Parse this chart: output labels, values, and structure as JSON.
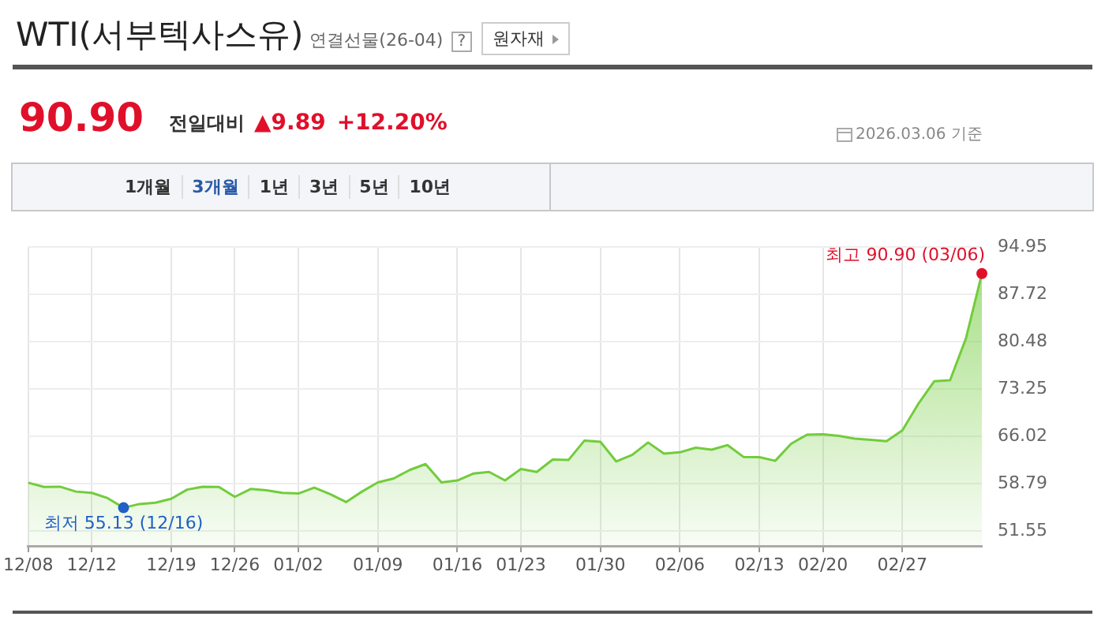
{
  "chart_data": {
    "type": "area",
    "title": "WTI(서부텍사스유)",
    "subtitle": "연결선물(26-04)",
    "categories": [
      "12/08",
      null,
      null,
      null,
      "12/12",
      null,
      null,
      null,
      null,
      "12/19",
      null,
      null,
      null,
      "12/26",
      null,
      null,
      null,
      "01/02",
      null,
      null,
      null,
      null,
      "01/09",
      null,
      null,
      null,
      null,
      "01/16",
      null,
      null,
      null,
      "01/23",
      null,
      null,
      null,
      null,
      "01/30",
      null,
      null,
      null,
      null,
      "02/06",
      null,
      null,
      null,
      null,
      "02/13",
      null,
      null,
      null,
      "02/20",
      null,
      null,
      null,
      null,
      "02/27",
      null,
      null,
      null,
      null,
      null
    ],
    "series": [
      {
        "color": "#72cc3c",
        "values": [
          58.95,
          58.3,
          58.35,
          57.6,
          57.4,
          56.6,
          55.13,
          55.7,
          55.9,
          56.5,
          57.9,
          58.35,
          58.3,
          56.8,
          58.0,
          57.8,
          57.4,
          57.3,
          58.2,
          57.2,
          56.0,
          57.6,
          59.0,
          59.6,
          60.9,
          61.8,
          59.0,
          59.3,
          60.35,
          60.6,
          59.3,
          61.05,
          60.6,
          62.5,
          62.45,
          65.4,
          65.2,
          62.2,
          63.2,
          65.1,
          63.4,
          63.6,
          64.3,
          64.0,
          64.7,
          62.9,
          62.85,
          62.3,
          64.9,
          66.3,
          66.35,
          66.1,
          65.7,
          65.5,
          65.3,
          66.95,
          71.0,
          74.45,
          74.6,
          81.01,
          90.9
        ]
      }
    ],
    "ylim": [
      49.3,
      94.95
    ],
    "yticks": [
      51.55,
      58.79,
      66.02,
      73.25,
      80.48,
      87.72,
      94.95
    ],
    "grid": true,
    "legend": false,
    "annotations": [
      "?",
      "원자재",
      "90.90",
      "전일대비",
      "▲9.89",
      "+12.20%",
      "2026.03.06 기준",
      "1개월",
      "3개월",
      "1년",
      "3년",
      "5년",
      "10년",
      "최고 90.90 (03/06)",
      "최저 55.13 (12/16)"
    ]
  }
}
